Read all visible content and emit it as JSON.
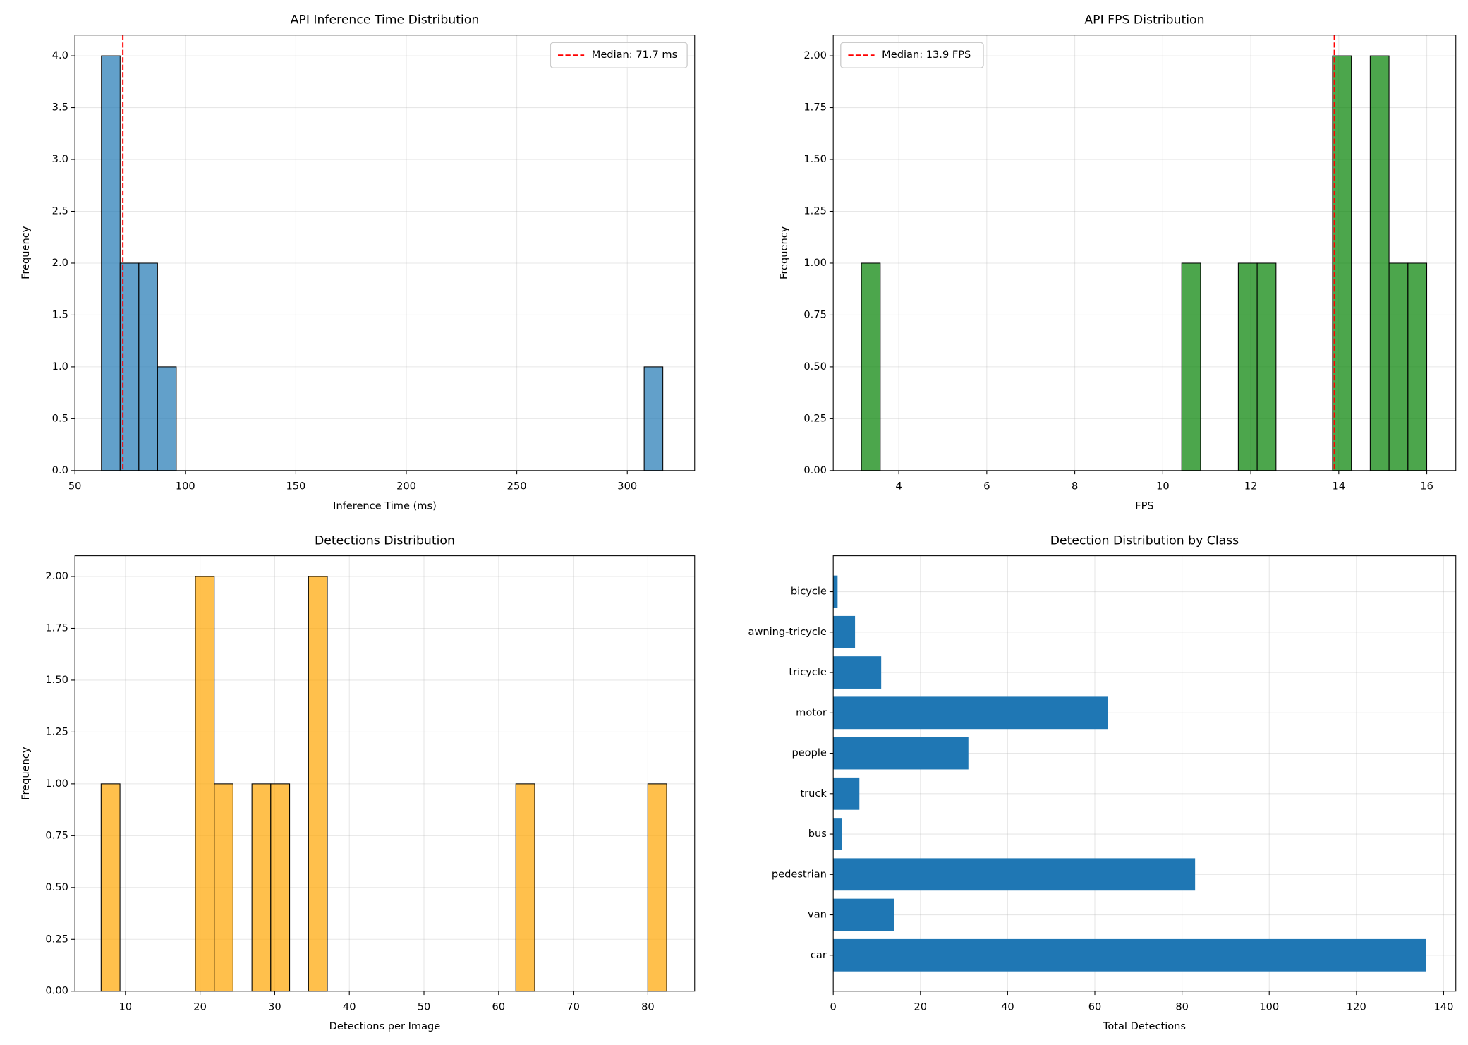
{
  "chart_data": [
    {
      "type": "histogram",
      "title": "API Inference Time Distribution",
      "xlabel": "Inference Time (ms)",
      "ylabel": "Frequency",
      "bins": [
        62.0,
        70.47,
        78.94,
        87.41,
        95.88,
        104.35,
        112.82,
        121.29,
        129.76,
        138.23,
        146.7,
        155.17,
        163.64,
        172.11,
        180.58,
        189.05,
        197.52,
        205.99,
        214.46,
        222.93,
        231.4,
        239.87,
        248.34,
        256.81,
        265.28,
        273.75,
        282.22,
        290.69,
        299.16,
        307.63,
        316.1
      ],
      "counts": [
        4,
        2,
        2,
        1,
        0,
        0,
        0,
        0,
        0,
        0,
        0,
        0,
        0,
        0,
        0,
        0,
        0,
        0,
        0,
        0,
        0,
        0,
        0,
        0,
        0,
        0,
        0,
        0,
        0,
        1
      ],
      "color": "#1f77b4",
      "alpha": 0.7,
      "edgecolor": "#000000",
      "xlim": [
        50,
        330.5
      ],
      "xticks": [
        50,
        100,
        150,
        200,
        250,
        300
      ],
      "ylim": [
        0,
        4.2
      ],
      "yticks": [
        {
          "value": 0,
          "label": "0.0"
        },
        0.5,
        {
          "value": 1,
          "label": "1.0"
        },
        1.5,
        {
          "value": 2,
          "label": "2.0"
        },
        2.5,
        {
          "value": 3,
          "label": "3.0"
        },
        3.5,
        {
          "value": 4,
          "label": "4.0"
        }
      ],
      "grid": true,
      "median": {
        "value": 71.7,
        "label": "Median: 71.7 ms",
        "color": "#ff0000"
      },
      "legend": "upper right"
    },
    {
      "type": "histogram",
      "title": "API FPS Distribution",
      "xlabel": "FPS",
      "ylabel": "Frequency",
      "bins": [
        3.15,
        3.578,
        4.007,
        4.435,
        4.863,
        5.292,
        5.72,
        6.148,
        6.576,
        7.005,
        7.433,
        7.861,
        8.29,
        8.718,
        9.146,
        9.575,
        10.003,
        10.431,
        10.859,
        11.288,
        11.716,
        12.144,
        12.573,
        13.001,
        13.429,
        13.858,
        14.286,
        14.714,
        15.142,
        15.571,
        15.999
      ],
      "counts": [
        1,
        0,
        0,
        0,
        0,
        0,
        0,
        0,
        0,
        0,
        0,
        0,
        0,
        0,
        0,
        0,
        0,
        1,
        0,
        0,
        1,
        1,
        0,
        0,
        0,
        2,
        0,
        2,
        1,
        1
      ],
      "color": "#008000",
      "alpha": 0.7,
      "edgecolor": "#000000",
      "xlim": [
        2.51,
        16.66
      ],
      "xticks": [
        4,
        6,
        8,
        10,
        12,
        14,
        16
      ],
      "ylim": [
        0,
        2.1
      ],
      "yticks": [
        {
          "value": 0,
          "label": "0.00"
        },
        0.25,
        {
          "value": 0.5,
          "label": "0.50"
        },
        0.75,
        {
          "value": 1,
          "label": "1.00"
        },
        1.25,
        {
          "value": 1.5,
          "label": "1.50"
        },
        1.75,
        {
          "value": 2,
          "label": "2.00"
        }
      ],
      "grid": true,
      "median": {
        "value": 13.9,
        "label": "Median: 13.9 FPS",
        "color": "#ff0000"
      },
      "legend": "upper left"
    },
    {
      "type": "histogram",
      "title": "Detections Distribution",
      "xlabel": "Detections per Image",
      "ylabel": "Frequency",
      "bins": [
        6.74,
        9.27,
        11.79,
        14.32,
        16.84,
        19.37,
        21.9,
        24.42,
        26.95,
        29.47,
        32.0,
        34.53,
        37.05,
        39.58,
        42.1,
        44.63,
        47.16,
        49.68,
        52.21,
        54.73,
        57.26,
        59.79,
        62.31,
        64.84,
        67.36,
        69.89,
        72.42,
        74.94,
        77.47,
        79.99,
        82.52
      ],
      "counts": [
        1,
        0,
        0,
        0,
        0,
        2,
        1,
        0,
        1,
        1,
        0,
        2,
        0,
        0,
        0,
        0,
        0,
        0,
        0,
        0,
        0,
        0,
        1,
        0,
        0,
        0,
        0,
        0,
        0,
        1
      ],
      "color": "#ffa500",
      "alpha": 0.7,
      "edgecolor": "#000000",
      "xlim": [
        3.23,
        86.27
      ],
      "xticks": [
        10,
        20,
        30,
        40,
        50,
        60,
        70,
        80
      ],
      "ylim": [
        0,
        2.1
      ],
      "yticks": [
        {
          "value": 0,
          "label": "0.00"
        },
        0.25,
        {
          "value": 0.5,
          "label": "0.50"
        },
        0.75,
        {
          "value": 1,
          "label": "1.00"
        },
        1.25,
        {
          "value": 1.5,
          "label": "1.50"
        },
        1.75,
        {
          "value": 2,
          "label": "2.00"
        }
      ],
      "grid": true
    },
    {
      "type": "barh",
      "title": "Detection Distribution by Class",
      "xlabel": "Total Detections",
      "categories": [
        "car",
        "van",
        "pedestrian",
        "bus",
        "truck",
        "people",
        "motor",
        "tricycle",
        "awning-tricycle",
        "bicycle"
      ],
      "values": [
        136,
        14,
        83,
        2,
        6,
        31,
        63,
        11,
        5,
        1
      ],
      "color": "#1f77b4",
      "xlim": [
        0,
        142.8
      ],
      "xticks": [
        0,
        20,
        40,
        60,
        80,
        100,
        120,
        140
      ],
      "grid": true
    }
  ]
}
